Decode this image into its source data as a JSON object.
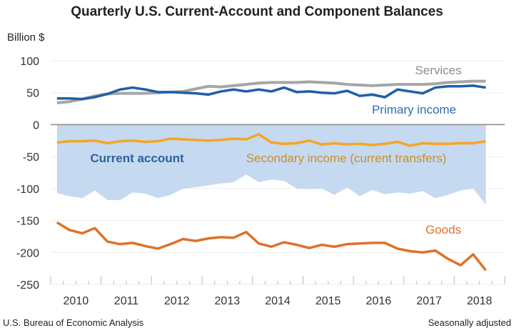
{
  "chart_data": {
    "type": "line",
    "title": "Quarterly U.S. Current-Account and Component Balances",
    "ylabel": "Billion $",
    "xlabel": "",
    "ylim": [
      -250,
      100
    ],
    "yticks": [
      100,
      50,
      0,
      -50,
      -100,
      -150,
      -200,
      -250
    ],
    "xticks": [
      "2010",
      "2011",
      "2012",
      "2013",
      "2014",
      "2015",
      "2016",
      "2017",
      "2018"
    ],
    "x_start": "2010 Q1",
    "x_end": "2018 Q3",
    "grid": true,
    "series": [
      {
        "name": "Current account",
        "kind": "area",
        "color": "#c5d9f0",
        "label_color": "#2f5f9e",
        "values": [
          -107,
          -112,
          -115,
          -103,
          -118,
          -118,
          -106,
          -108,
          -115,
          -110,
          -100,
          -98,
          -95,
          -92,
          -90,
          -78,
          -90,
          -86,
          -88,
          -100,
          -101,
          -100,
          -110,
          -98,
          -112,
          -102,
          -109,
          -106,
          -108,
          -104,
          -115,
          -110,
          -103,
          -100,
          -125
        ]
      },
      {
        "name": "Services",
        "kind": "line",
        "color": "#a6a6a6",
        "label_color": "#8c8c8c",
        "values": [
          34,
          36,
          40,
          45,
          48,
          49,
          49,
          49,
          50,
          51,
          52,
          56,
          60,
          59,
          61,
          63,
          65,
          66,
          66,
          66,
          67,
          66,
          65,
          63,
          62,
          61,
          62,
          63,
          63,
          63,
          64,
          66,
          67,
          68,
          68
        ]
      },
      {
        "name": "Primary income",
        "kind": "line",
        "color": "#1f5fa6",
        "label_color": "#2e6cb5",
        "values": [
          41,
          41,
          40,
          43,
          48,
          55,
          58,
          55,
          51,
          51,
          50,
          49,
          47,
          52,
          55,
          52,
          55,
          52,
          58,
          51,
          52,
          50,
          49,
          53,
          45,
          47,
          43,
          55,
          52,
          49,
          58,
          60,
          60,
          61,
          58
        ]
      },
      {
        "name": "Secondary income (current transfers)",
        "kind": "line",
        "color": "#f5a623",
        "label_color": "#c8902e",
        "values": [
          -28,
          -26,
          -26,
          -25,
          -29,
          -26,
          -25,
          -27,
          -26,
          -22,
          -23,
          -24,
          -25,
          -24,
          -22,
          -23,
          -15,
          -28,
          -30,
          -29,
          -25,
          -31,
          -29,
          -31,
          -30,
          -32,
          -30,
          -27,
          -33,
          -29,
          -30,
          -30,
          -29,
          -29,
          -26
        ]
      },
      {
        "name": "Goods",
        "kind": "line",
        "color": "#e0702a",
        "label_color": "#e0702a",
        "values": [
          -153,
          -165,
          -170,
          -162,
          -183,
          -187,
          -185,
          -190,
          -194,
          -187,
          -179,
          -182,
          -178,
          -176,
          -177,
          -168,
          -186,
          -191,
          -184,
          -188,
          -193,
          -188,
          -191,
          -187,
          -186,
          -185,
          -185,
          -194,
          -198,
          -200,
          -197,
          -210,
          -220,
          -203,
          -228
        ]
      }
    ]
  },
  "footer": {
    "source": "U.S. Bureau of Economic Analysis",
    "note": "Seasonally adjusted"
  }
}
